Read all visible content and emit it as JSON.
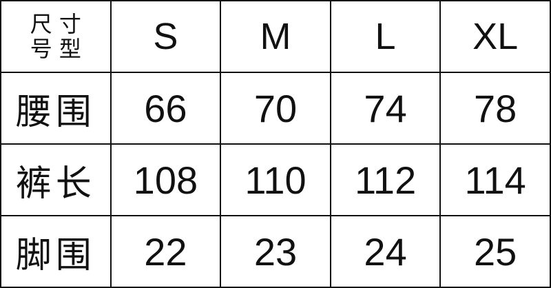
{
  "corner": {
    "top": "尺 寸",
    "bottom": "号 型"
  },
  "columns": [
    "S",
    "M",
    "L",
    "XL"
  ],
  "rows": [
    {
      "label": "腰围",
      "values": [
        "66",
        "70",
        "74",
        "78"
      ]
    },
    {
      "label": "裤长",
      "values": [
        "108",
        "110",
        "112",
        "114"
      ]
    },
    {
      "label": "脚围",
      "values": [
        "22",
        "23",
        "24",
        "25"
      ]
    }
  ]
}
